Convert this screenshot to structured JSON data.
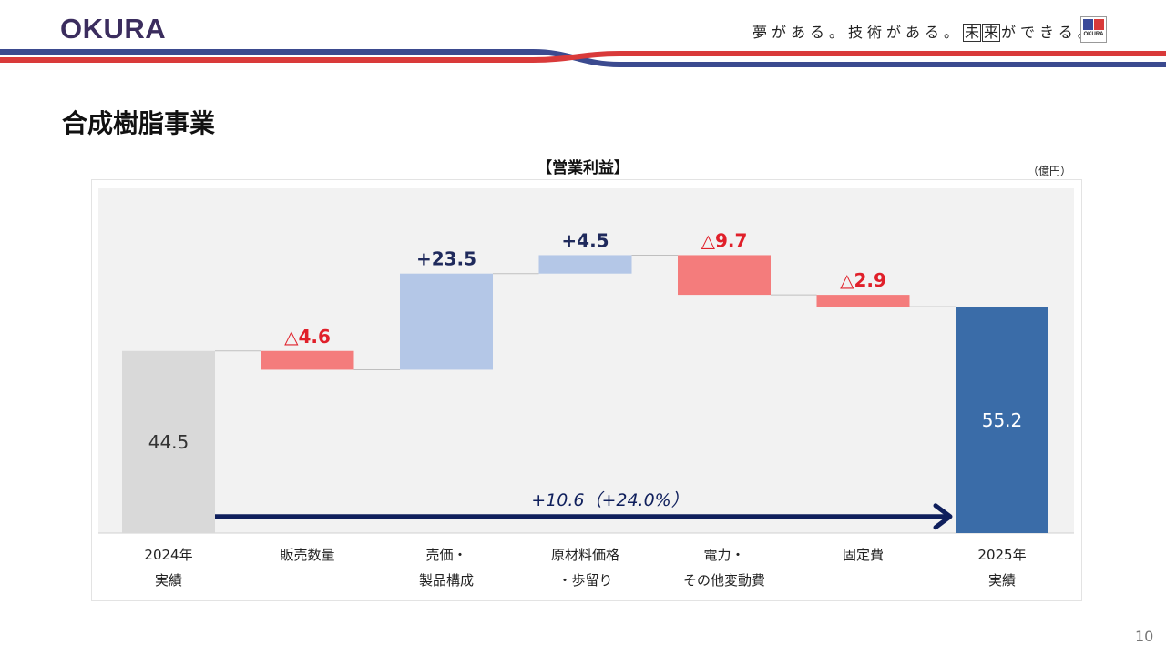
{
  "header": {
    "logo": "OKURA",
    "tagline_a": "夢がある。技術がある。",
    "tagline_box1": "未",
    "tagline_box2": "来",
    "tagline_b": "ができる。",
    "badge_text": "OKURA",
    "colors": {
      "navy": "#3b4a8f",
      "red": "#d93a3a"
    }
  },
  "page": {
    "title": "合成樹脂事業",
    "number": "10"
  },
  "chart_data": {
    "type": "waterfall",
    "title": "【営業利益】",
    "unit": "（億円）",
    "ylim": [
      0,
      70
    ],
    "grid": false,
    "steps": [
      {
        "label1": "2024年",
        "label2": "実績",
        "kind": "total",
        "value": 44.5,
        "display": "44.5",
        "color": "#d9d9d9",
        "label_color": "#333333"
      },
      {
        "label1": "販売数量",
        "label2": "",
        "kind": "delta",
        "value": -4.6,
        "display": "△4.6",
        "color": "#f47c7c",
        "label_color": "#e0202a"
      },
      {
        "label1": "売価・",
        "label2": "製品構成",
        "kind": "delta",
        "value": 23.5,
        "display": "+23.5",
        "color": "#b4c7e7",
        "label_color": "#1f2a5c"
      },
      {
        "label1": "原材料価格",
        "label2": "・歩留り",
        "kind": "delta",
        "value": 4.5,
        "display": "+4.5",
        "color": "#b4c7e7",
        "label_color": "#1f2a5c"
      },
      {
        "label1": "電力・",
        "label2": "その他変動費",
        "kind": "delta",
        "value": -9.7,
        "display": "△9.7",
        "color": "#f47c7c",
        "label_color": "#e0202a"
      },
      {
        "label1": "固定費",
        "label2": "",
        "kind": "delta",
        "value": -2.9,
        "display": "△2.9",
        "color": "#f47c7c",
        "label_color": "#e0202a"
      },
      {
        "label1": "2025年",
        "label2": "実績",
        "kind": "total",
        "value": 55.2,
        "display": "55.2",
        "color": "#3a6ca8",
        "label_color": "#ffffff"
      }
    ],
    "annotation": {
      "text": "+10.6（+24.0%）",
      "color": "#0f1f5c",
      "from_step": 0,
      "to_step": 6,
      "level": 4.5
    }
  }
}
